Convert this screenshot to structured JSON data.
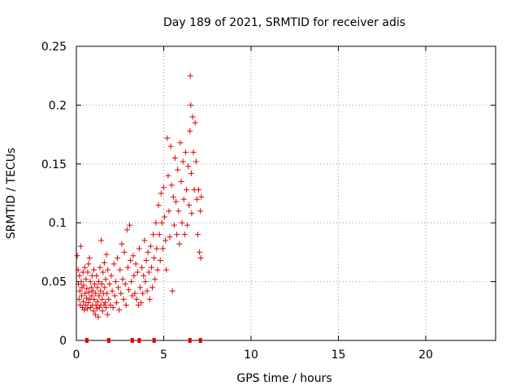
{
  "chart_data": {
    "type": "scatter",
    "title": "Day 189 of 2021, SRMTID for receiver adis",
    "xlabel": "GPS time / hours",
    "ylabel": "SRMTID / TECUs",
    "xlim": [
      0,
      24
    ],
    "ylim": [
      0,
      0.25
    ],
    "xticks": [
      0,
      5,
      10,
      15,
      20
    ],
    "yticks": [
      0,
      0.05,
      0.1,
      0.15,
      0.2,
      0.25
    ],
    "xtick_labels": [
      "0",
      "5",
      "10",
      "15",
      "20"
    ],
    "ytick_labels": [
      "0",
      "0.05",
      "0.1",
      "0.15",
      "0.2",
      "0.25"
    ],
    "grid": true,
    "marker": "plus",
    "color": "#e00000",
    "series": [
      {
        "name": "SRMTID",
        "points": [
          [
            0.05,
            0.072
          ],
          [
            0.1,
            0.06
          ],
          [
            0.12,
            0.048
          ],
          [
            0.15,
            0.035
          ],
          [
            0.18,
            0.055
          ],
          [
            0.2,
            0.042
          ],
          [
            0.22,
            0.03
          ],
          [
            0.25,
            0.08
          ],
          [
            0.28,
            0.05
          ],
          [
            0.3,
            0.038
          ],
          [
            0.32,
            0.045
          ],
          [
            0.35,
            0.028
          ],
          [
            0.38,
            0.058
          ],
          [
            0.4,
            0.033
          ],
          [
            0.42,
            0.047
          ],
          [
            0.45,
            0.026
          ],
          [
            0.48,
            0.062
          ],
          [
            0.5,
            0.04
          ],
          [
            0.52,
            0.03
          ],
          [
            0.55,
            0.052
          ],
          [
            0.58,
            0.036
          ],
          [
            0.6,
            0.044
          ],
          [
            0.62,
            0.027
          ],
          [
            0.65,
            0.058
          ],
          [
            0.68,
            0.032
          ],
          [
            0.7,
            0.065
          ],
          [
            0.72,
            0.041
          ],
          [
            0.75,
            0.07
          ],
          [
            0.78,
            0.035
          ],
          [
            0.8,
            0.05
          ],
          [
            0.82,
            0.028
          ],
          [
            0.85,
            0.045
          ],
          [
            0.88,
            0.038
          ],
          [
            0.9,
            0.055
          ],
          [
            0.92,
            0.03
          ],
          [
            0.95,
            0.042
          ],
          [
            0.98,
            0.025
          ],
          [
            1.0,
            0.06
          ],
          [
            1.02,
            0.035
          ],
          [
            1.05,
            0.048
          ],
          [
            1.08,
            0.022
          ],
          [
            1.1,
            0.04
          ],
          [
            1.12,
            0.03
          ],
          [
            1.15,
            0.055
          ],
          [
            1.18,
            0.027
          ],
          [
            1.2,
            0.045
          ],
          [
            1.22,
            0.033
          ],
          [
            1.25,
            0.02
          ],
          [
            1.28,
            0.05
          ],
          [
            1.3,
            0.038
          ],
          [
            1.32,
            0.028
          ],
          [
            1.35,
            0.062
          ],
          [
            1.38,
            0.042
          ],
          [
            1.4,
            0.03
          ],
          [
            1.42,
            0.085
          ],
          [
            1.45,
            0.048
          ],
          [
            1.48,
            0.035
          ],
          [
            1.5,
            0.025
          ],
          [
            1.52,
            0.058
          ],
          [
            1.55,
            0.04
          ],
          [
            1.58,
            0.03
          ],
          [
            1.6,
            0.066
          ],
          [
            1.62,
            0.045
          ],
          [
            1.65,
            0.032
          ],
          [
            1.68,
            0.052
          ],
          [
            1.7,
            0.028
          ],
          [
            1.72,
            0.073
          ],
          [
            1.75,
            0.04
          ],
          [
            1.78,
            0.022
          ],
          [
            1.8,
            0.06
          ],
          [
            1.85,
            0.035
          ],
          [
            1.9,
            0.048
          ],
          [
            1.95,
            0.03
          ],
          [
            2.0,
            0.055
          ],
          [
            2.05,
            0.042
          ],
          [
            2.1,
            0.028
          ],
          [
            2.15,
            0.065
          ],
          [
            2.2,
            0.038
          ],
          [
            2.25,
            0.05
          ],
          [
            2.3,
            0.032
          ],
          [
            2.35,
            0.07
          ],
          [
            2.4,
            0.045
          ],
          [
            2.45,
            0.026
          ],
          [
            2.5,
            0.06
          ],
          [
            2.55,
            0.04
          ],
          [
            2.6,
            0.082
          ],
          [
            2.65,
            0.052
          ],
          [
            2.7,
            0.035
          ],
          [
            2.75,
            0.075
          ],
          [
            2.8,
            0.048
          ],
          [
            2.85,
            0.03
          ],
          [
            2.9,
            0.094
          ],
          [
            2.95,
            0.062
          ],
          [
            3.0,
            0.043
          ],
          [
            3.05,
            0.098
          ],
          [
            3.1,
            0.068
          ],
          [
            3.15,
            0.05
          ],
          [
            3.2,
            0.038
          ],
          [
            3.25,
            0.072
          ],
          [
            3.3,
            0.055
          ],
          [
            3.35,
            0.04
          ],
          [
            3.4,
            0.065
          ],
          [
            3.45,
            0.035
          ],
          [
            3.5,
            0.058
          ],
          [
            3.55,
            0.03
          ],
          [
            3.6,
            0.078
          ],
          [
            3.65,
            0.045
          ],
          [
            3.7,
            0.032
          ],
          [
            3.75,
            0.062
          ],
          [
            3.8,
            0.04
          ],
          [
            3.85,
            0.055
          ],
          [
            3.9,
            0.085
          ],
          [
            3.95,
            0.05
          ],
          [
            4.0,
            0.068
          ],
          [
            4.05,
            0.042
          ],
          [
            4.1,
            0.075
          ],
          [
            4.15,
            0.058
          ],
          [
            4.2,
            0.035
          ],
          [
            4.25,
            0.08
          ],
          [
            4.3,
            0.062
          ],
          [
            4.35,
            0.045
          ],
          [
            4.4,
            0.09
          ],
          [
            4.45,
            0.07
          ],
          [
            4.5,
            0.052
          ],
          [
            4.55,
            0.1
          ],
          [
            4.6,
            0.078
          ],
          [
            4.65,
            0.06
          ],
          [
            4.7,
            0.115
          ],
          [
            4.75,
            0.09
          ],
          [
            4.8,
            0.068
          ],
          [
            4.85,
            0.125
          ],
          [
            4.9,
            0.1
          ],
          [
            4.95,
            0.078
          ],
          [
            5.0,
            0.13
          ],
          [
            5.05,
            0.105
          ],
          [
            5.1,
            0.085
          ],
          [
            5.15,
            0.06
          ],
          [
            5.2,
            0.172
          ],
          [
            5.25,
            0.14
          ],
          [
            5.3,
            0.11
          ],
          [
            5.35,
            0.088
          ],
          [
            5.4,
            0.165
          ],
          [
            5.45,
            0.132
          ],
          [
            5.5,
            0.042
          ],
          [
            5.55,
            0.122
          ],
          [
            5.6,
            0.098
          ],
          [
            5.65,
            0.155
          ],
          [
            5.7,
            0.118
          ],
          [
            5.75,
            0.09
          ],
          [
            5.8,
            0.145
          ],
          [
            5.85,
            0.11
          ],
          [
            5.9,
            0.082
          ],
          [
            5.95,
            0.168
          ],
          [
            6.0,
            0.135
          ],
          [
            6.05,
            0.1
          ],
          [
            6.1,
            0.152
          ],
          [
            6.15,
            0.12
          ],
          [
            6.2,
            0.09
          ],
          [
            6.25,
            0.16
          ],
          [
            6.3,
            0.128
          ],
          [
            6.35,
            0.098
          ],
          [
            6.4,
            0.148
          ],
          [
            6.45,
            0.115
          ],
          [
            6.5,
            0.178
          ],
          [
            6.52,
            0.225
          ],
          [
            6.55,
            0.2
          ],
          [
            6.58,
            0.142
          ],
          [
            6.6,
            0.108
          ],
          [
            6.65,
            0.19
          ],
          [
            6.7,
            0.16
          ],
          [
            6.75,
            0.128
          ],
          [
            6.8,
            0.185
          ],
          [
            6.85,
            0.152
          ],
          [
            6.9,
            0.12
          ],
          [
            6.95,
            0.09
          ],
          [
            7.0,
            0.128
          ],
          [
            7.05,
            0.075
          ],
          [
            7.1,
            0.11
          ],
          [
            7.12,
            0.07
          ],
          [
            7.15,
            0.122
          ]
        ]
      }
    ],
    "gap_markers_x": [
      0.6,
      1.85,
      3.2,
      3.6,
      4.45,
      6.5,
      7.1
    ]
  }
}
